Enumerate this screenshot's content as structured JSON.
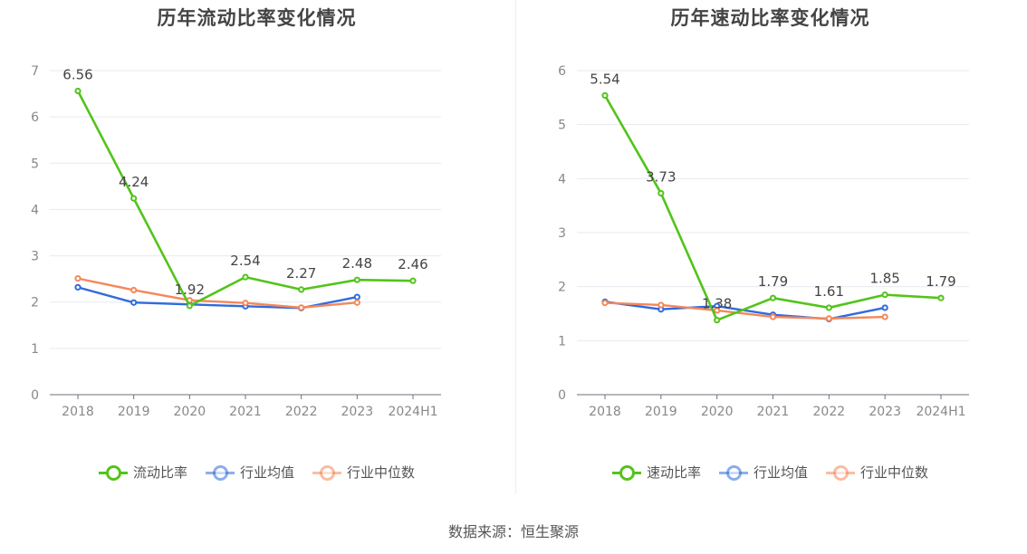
{
  "source_label": "数据来源：恒生聚源",
  "colors": {
    "green": "#52c41a",
    "blue": "#2f6bdd",
    "orange": "#f5875a",
    "grid": "#e6e9f0",
    "axis": "#6e7079",
    "tick": "#888888",
    "label": "#444444"
  },
  "chart_data": [
    {
      "type": "line",
      "title": "历年流动比率变化情况",
      "categories": [
        "2018",
        "2019",
        "2020",
        "2021",
        "2022",
        "2023",
        "2024H1"
      ],
      "ylim": [
        0,
        7
      ],
      "yticks": [
        0,
        1,
        2,
        3,
        4,
        5,
        6,
        7
      ],
      "grid": true,
      "legend_position": "bottom",
      "series": [
        {
          "name": "流动比率",
          "color": "#52c41a",
          "values": [
            6.56,
            4.24,
            1.92,
            2.54,
            2.27,
            2.48,
            2.46
          ],
          "labels": [
            "6.56",
            "4.24",
            "1.92",
            "2.54",
            "2.27",
            "2.48",
            "2.46"
          ]
        },
        {
          "name": "行业均值",
          "color": "#2f6bdd",
          "values": [
            2.32,
            1.99,
            1.95,
            1.91,
            1.87,
            2.11,
            null
          ]
        },
        {
          "name": "行业中位数",
          "color": "#f5875a",
          "values": [
            2.51,
            2.26,
            2.04,
            1.98,
            1.88,
            1.99,
            null
          ]
        }
      ]
    },
    {
      "type": "line",
      "title": "历年速动比率变化情况",
      "categories": [
        "2018",
        "2019",
        "2020",
        "2021",
        "2022",
        "2023",
        "2024H1"
      ],
      "ylim": [
        0,
        6
      ],
      "yticks": [
        0,
        1,
        2,
        3,
        4,
        5,
        6
      ],
      "grid": true,
      "legend_position": "bottom",
      "series": [
        {
          "name": "速动比率",
          "color": "#52c41a",
          "values": [
            5.54,
            3.73,
            1.38,
            1.79,
            1.61,
            1.85,
            1.79
          ],
          "labels": [
            "5.54",
            "3.73",
            "1.38",
            "1.79",
            "1.61",
            "1.85",
            "1.79"
          ]
        },
        {
          "name": "行业均值",
          "color": "#2f6bdd",
          "values": [
            1.72,
            1.58,
            1.64,
            1.48,
            1.4,
            1.61,
            null
          ]
        },
        {
          "name": "行业中位数",
          "color": "#f5875a",
          "values": [
            1.7,
            1.66,
            1.56,
            1.44,
            1.41,
            1.44,
            null
          ]
        }
      ]
    }
  ]
}
